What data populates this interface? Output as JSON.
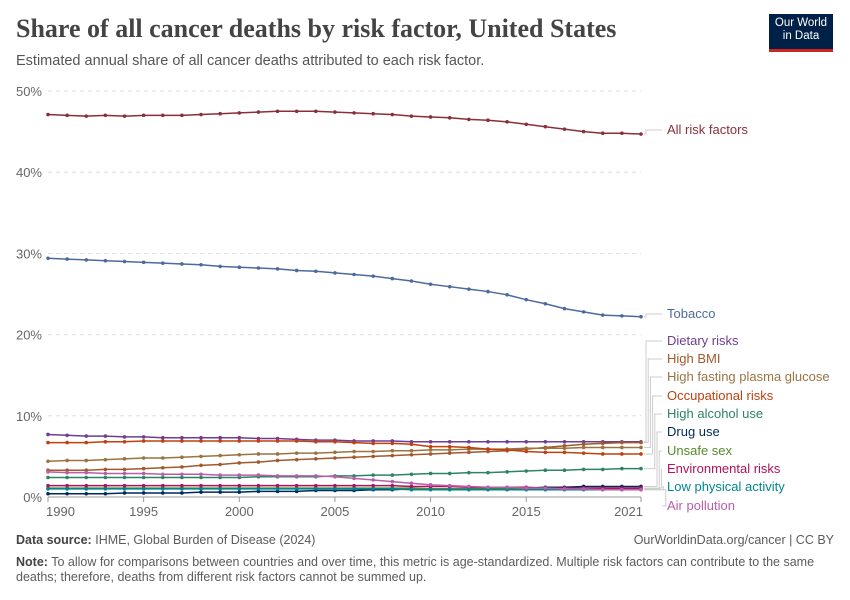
{
  "title": "Share of all cancer deaths by risk factor, United States",
  "subtitle": "Estimated annual share of all cancer deaths attributed to each risk factor.",
  "logo": "Our World in Data",
  "footer": {
    "source_label": "Data source:",
    "source": "IHME, Global Burden of Disease (2024)",
    "url": "OurWorldinData.org/cancer | CC BY",
    "note_label": "Note:",
    "note": "To allow for comparisons between countries and over time, this metric is age-standardized. Multiple risk factors can contribute to the same deaths; therefore, deaths from different risk factors cannot be summed up."
  },
  "chart_data": {
    "type": "line",
    "x": [
      1990,
      1991,
      1992,
      1993,
      1994,
      1995,
      1996,
      1997,
      1998,
      1999,
      2000,
      2001,
      2002,
      2003,
      2004,
      2005,
      2006,
      2007,
      2008,
      2009,
      2010,
      2011,
      2012,
      2013,
      2014,
      2015,
      2016,
      2017,
      2018,
      2019,
      2020,
      2021
    ],
    "xticks": [
      "1990",
      "1995",
      "2000",
      "2005",
      "2010",
      "2015",
      "2021"
    ],
    "yticks": [
      "0%",
      "10%",
      "20%",
      "30%",
      "40%",
      "50%"
    ],
    "ylim": [
      0,
      50
    ],
    "unit": "%",
    "grid": "horizontal dashed",
    "legend": "right, labels at line ends",
    "series": [
      {
        "name": "All risk factors",
        "color": "#883039",
        "values": [
          47.1,
          47.0,
          46.9,
          47.0,
          46.9,
          47.0,
          47.0,
          47.0,
          47.1,
          47.2,
          47.3,
          47.4,
          47.5,
          47.5,
          47.5,
          47.4,
          47.3,
          47.2,
          47.1,
          46.9,
          46.8,
          46.7,
          46.5,
          46.4,
          46.2,
          45.9,
          45.6,
          45.3,
          45.0,
          44.8,
          44.8,
          44.7
        ]
      },
      {
        "name": "Tobacco",
        "color": "#4c6a9c",
        "values": [
          29.4,
          29.3,
          29.2,
          29.1,
          29.0,
          28.9,
          28.8,
          28.7,
          28.6,
          28.4,
          28.3,
          28.2,
          28.1,
          27.9,
          27.8,
          27.6,
          27.4,
          27.2,
          26.9,
          26.6,
          26.2,
          25.9,
          25.6,
          25.3,
          24.9,
          24.3,
          23.8,
          23.2,
          22.8,
          22.4,
          22.3,
          22.2
        ]
      },
      {
        "name": "Dietary risks",
        "color": "#6d3e91",
        "values": [
          7.7,
          7.6,
          7.5,
          7.5,
          7.4,
          7.4,
          7.3,
          7.3,
          7.3,
          7.3,
          7.3,
          7.2,
          7.2,
          7.1,
          7.0,
          7.0,
          6.9,
          6.9,
          6.9,
          6.8,
          6.8,
          6.8,
          6.8,
          6.8,
          6.8,
          6.8,
          6.8,
          6.8,
          6.8,
          6.8,
          6.8,
          6.8
        ]
      },
      {
        "name": "High BMI",
        "color": "#a2592b",
        "values": [
          3.3,
          3.3,
          3.3,
          3.4,
          3.4,
          3.5,
          3.6,
          3.7,
          3.9,
          4.0,
          4.2,
          4.3,
          4.5,
          4.6,
          4.7,
          4.8,
          4.9,
          5.0,
          5.1,
          5.2,
          5.3,
          5.4,
          5.5,
          5.6,
          5.7,
          5.9,
          6.1,
          6.3,
          6.5,
          6.6,
          6.7,
          6.7
        ]
      },
      {
        "name": "High fasting plasma glucose",
        "color": "#9a7440",
        "values": [
          4.4,
          4.5,
          4.5,
          4.6,
          4.7,
          4.8,
          4.8,
          4.9,
          5.0,
          5.1,
          5.2,
          5.3,
          5.3,
          5.4,
          5.4,
          5.5,
          5.6,
          5.6,
          5.7,
          5.7,
          5.8,
          5.8,
          5.9,
          5.9,
          5.9,
          6.0,
          6.0,
          6.0,
          6.1,
          6.1,
          6.1,
          6.1
        ]
      },
      {
        "name": "Occupational risks",
        "color": "#c0400f",
        "values": [
          6.7,
          6.7,
          6.7,
          6.8,
          6.8,
          6.9,
          6.9,
          6.9,
          6.9,
          6.9,
          6.9,
          6.9,
          6.9,
          6.9,
          6.8,
          6.8,
          6.7,
          6.6,
          6.6,
          6.5,
          6.2,
          6.2,
          6.1,
          5.9,
          5.8,
          5.6,
          5.5,
          5.5,
          5.4,
          5.3,
          5.3,
          5.3
        ]
      },
      {
        "name": "High alcohol use",
        "color": "#2c8465",
        "values": [
          2.4,
          2.4,
          2.4,
          2.4,
          2.4,
          2.4,
          2.4,
          2.4,
          2.4,
          2.4,
          2.4,
          2.5,
          2.5,
          2.5,
          2.5,
          2.6,
          2.6,
          2.7,
          2.7,
          2.8,
          2.9,
          2.9,
          3.0,
          3.0,
          3.1,
          3.2,
          3.3,
          3.3,
          3.4,
          3.4,
          3.5,
          3.5
        ]
      },
      {
        "name": "Drug use",
        "color": "#00295b",
        "values": [
          0.4,
          0.4,
          0.4,
          0.4,
          0.5,
          0.5,
          0.5,
          0.5,
          0.6,
          0.6,
          0.6,
          0.7,
          0.7,
          0.7,
          0.8,
          0.8,
          0.8,
          0.9,
          0.9,
          1.0,
          1.0,
          1.0,
          1.0,
          1.1,
          1.1,
          1.1,
          1.2,
          1.2,
          1.3,
          1.3,
          1.3,
          1.3
        ]
      },
      {
        "name": "Unsafe sex",
        "color": "#578a2e",
        "values": [
          1.1,
          1.1,
          1.1,
          1.1,
          1.1,
          1.1,
          1.1,
          1.1,
          1.1,
          1.1,
          1.1,
          1.1,
          1.1,
          1.1,
          1.1,
          1.1,
          1.1,
          1.1,
          1.1,
          1.1,
          1.0,
          1.0,
          1.0,
          1.0,
          1.0,
          1.0,
          1.0,
          1.0,
          1.0,
          1.0,
          1.0,
          1.0
        ]
      },
      {
        "name": "Environmental risks",
        "color": "#b0115a",
        "values": [
          1.4,
          1.4,
          1.4,
          1.4,
          1.4,
          1.4,
          1.4,
          1.4,
          1.4,
          1.4,
          1.4,
          1.4,
          1.4,
          1.4,
          1.4,
          1.4,
          1.4,
          1.4,
          1.4,
          1.3,
          1.3,
          1.3,
          1.2,
          1.2,
          1.2,
          1.2,
          1.1,
          1.1,
          1.1,
          1.1,
          1.1,
          1.1
        ]
      },
      {
        "name": "Low physical activity",
        "color": "#00868f",
        "values": [
          1.0,
          1.0,
          1.0,
          1.0,
          1.0,
          1.0,
          1.0,
          1.0,
          1.0,
          1.0,
          1.0,
          1.0,
          1.0,
          1.0,
          1.0,
          1.0,
          1.0,
          1.0,
          1.0,
          0.9,
          0.9,
          0.9,
          0.9,
          0.9,
          0.9,
          0.9,
          0.9,
          0.9,
          0.9,
          0.9,
          0.9,
          0.9
        ]
      },
      {
        "name": "Air pollution",
        "color": "#b95ea8",
        "values": [
          3.1,
          3.0,
          3.0,
          2.9,
          2.9,
          2.9,
          2.8,
          2.8,
          2.8,
          2.7,
          2.7,
          2.7,
          2.6,
          2.6,
          2.6,
          2.5,
          2.3,
          2.1,
          1.9,
          1.7,
          1.5,
          1.4,
          1.3,
          1.2,
          1.2,
          1.1,
          1.1,
          1.0,
          1.0,
          0.9,
          0.9,
          0.9
        ]
      }
    ]
  }
}
